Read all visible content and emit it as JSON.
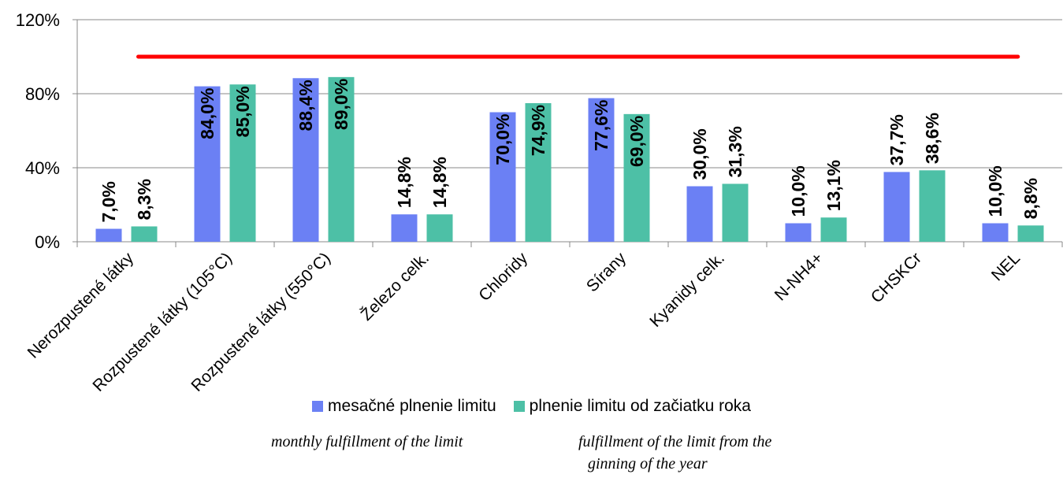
{
  "chart_data": {
    "type": "bar",
    "categories": [
      "Nerozpustené látky",
      "Rozpustené látky (105°C)",
      "Rozpustené látky (550°C)",
      "Železo celk.",
      "Chloridy",
      "Sírany",
      "Kyanidy celk.",
      "N-NH4+",
      "CHSKCr",
      "NEL"
    ],
    "series": [
      {
        "name": "mesačné plnenie limitu",
        "color": "#6b80f4",
        "values": [
          7.0,
          84.0,
          88.4,
          14.8,
          70.0,
          77.6,
          30.0,
          10.0,
          37.7,
          10.0
        ],
        "labels": [
          "7,0%",
          "84,0%",
          "88,4%",
          "14,8%",
          "70,0%",
          "77,6%",
          "30,0%",
          "10,0%",
          "37,7%",
          "10,0%"
        ]
      },
      {
        "name": "plnenie limitu od začiatku roka",
        "color": "#4dc0a6",
        "values": [
          8.3,
          85.0,
          89.0,
          14.8,
          74.9,
          69.0,
          31.3,
          13.1,
          38.6,
          8.8
        ],
        "labels": [
          "8,3%",
          "85,0%",
          "89,0%",
          "14,8%",
          "74,9%",
          "69,0%",
          "31,3%",
          "13,1%",
          "38,6%",
          "8,8%"
        ]
      }
    ],
    "limit_line": {
      "value": 100,
      "color": "#ff0000"
    },
    "ylim": [
      0,
      120
    ],
    "yticks": [
      0,
      40,
      80,
      120
    ],
    "ytick_labels": [
      "0%",
      "40%",
      "80%",
      "120%"
    ],
    "grid": true,
    "legend_position": "bottom"
  },
  "legend": {
    "item1": "mesačné plnenie limitu",
    "item2": "plnenie limitu od začiatku roka"
  },
  "captions": {
    "monthly": "monthly fulfillment of the limit",
    "yearly_line1": "fulfillment of the limit from the",
    "yearly_line2": "ginning of the year"
  }
}
